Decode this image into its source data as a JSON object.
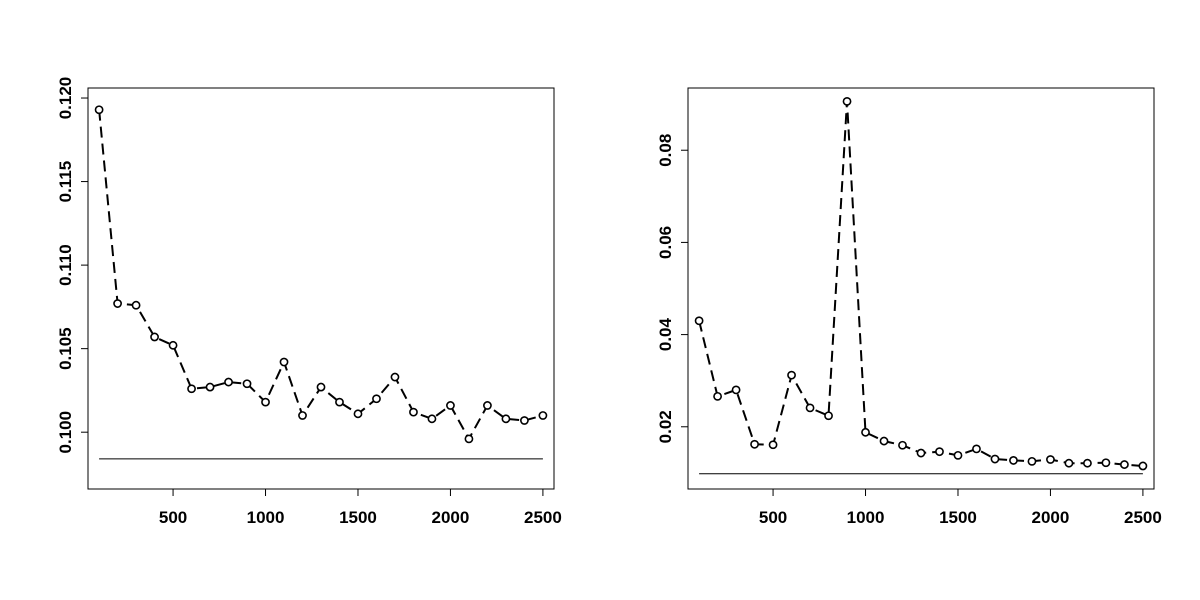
{
  "chart_data": [
    {
      "type": "line",
      "title": "",
      "xlabel": "",
      "ylabel": "",
      "xlim": [
        40,
        2560
      ],
      "ylim": [
        0.0966,
        0.1206
      ],
      "x_ticks": [
        500,
        1000,
        1500,
        2000,
        2500
      ],
      "x_tick_labels": [
        "500",
        "1000",
        "1500",
        "2000",
        "2500"
      ],
      "y_ticks": [
        0.1,
        0.105,
        0.11,
        0.115,
        0.12
      ],
      "y_tick_labels": [
        "0.100",
        "0.105",
        "0.110",
        "0.115",
        "0.120"
      ],
      "grid": false,
      "x": [
        100,
        200,
        300,
        400,
        500,
        600,
        700,
        800,
        900,
        1000,
        1100,
        1200,
        1300,
        1400,
        1500,
        1600,
        1700,
        1800,
        1900,
        2000,
        2100,
        2200,
        2300,
        2400,
        2500
      ],
      "series": [
        {
          "values": [
            0.1193,
            0.1077,
            0.1076,
            0.1057,
            0.1052,
            0.1026,
            0.1027,
            0.103,
            0.1029,
            0.1018,
            0.1042,
            0.101,
            0.1027,
            0.1018,
            0.1011,
            0.102,
            0.1033,
            0.1012,
            0.1008,
            0.1016,
            0.0996,
            0.1016,
            0.1008,
            0.1007,
            0.101
          ],
          "style": "dashed line with open circles"
        }
      ],
      "reference_line": {
        "value": 0.0984,
        "from_x": 100,
        "to_x": 2500
      }
    },
    {
      "type": "line",
      "title": "",
      "xlabel": "",
      "ylabel": "",
      "xlim": [
        40,
        2560
      ],
      "ylim": [
        0.0065,
        0.0935
      ],
      "x_ticks": [
        500,
        1000,
        1500,
        2000,
        2500
      ],
      "x_tick_labels": [
        "500",
        "1000",
        "1500",
        "2000",
        "2500"
      ],
      "y_ticks": [
        0.02,
        0.04,
        0.06,
        0.08
      ],
      "y_tick_labels": [
        "0.02",
        "0.04",
        "0.06",
        "0.08"
      ],
      "grid": false,
      "x": [
        100,
        200,
        300,
        400,
        500,
        600,
        700,
        800,
        900,
        1000,
        1100,
        1200,
        1300,
        1400,
        1500,
        1600,
        1700,
        1800,
        1900,
        2000,
        2100,
        2200,
        2300,
        2400,
        2500
      ],
      "series": [
        {
          "values": [
            0.043,
            0.0266,
            0.028,
            0.0162,
            0.0161,
            0.0312,
            0.0241,
            0.0224,
            0.0906,
            0.0188,
            0.0169,
            0.016,
            0.0143,
            0.0146,
            0.0138,
            0.0152,
            0.013,
            0.0127,
            0.0125,
            0.0129,
            0.0121,
            0.0121,
            0.0122,
            0.0118,
            0.0115
          ],
          "style": "dashed line with open circles"
        }
      ],
      "reference_line": {
        "value": 0.0098,
        "from_x": 100,
        "to_x": 2500
      }
    }
  ]
}
